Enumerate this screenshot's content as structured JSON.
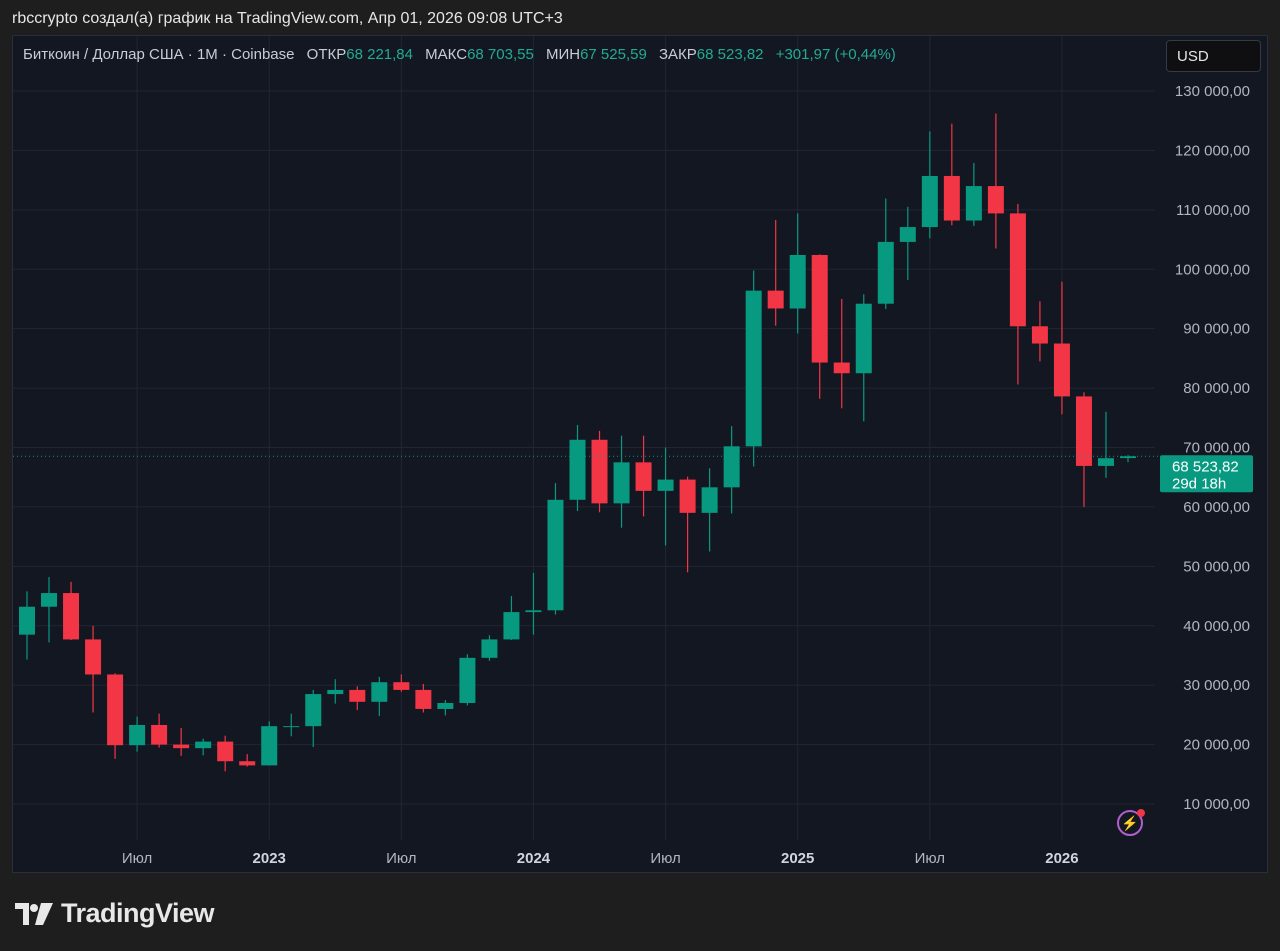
{
  "credit": "rbccrypto создал(а) график на TradingView.com, Апр 01, 2026 09:08 UTC+3",
  "legend": {
    "symbol": "Биткоин / Доллар США · 1M · Coinbase",
    "open_label": "ОТКР",
    "open": "68 221,84",
    "high_label": "МАКС",
    "high": "68 703,55",
    "low_label": "МИН",
    "low": "67 525,59",
    "close_label": "ЗАКР",
    "close": "68 523,82",
    "change": "+301,97 (+0,44%)"
  },
  "currency": "USD",
  "price_label": {
    "price": "68 523,82",
    "countdown": "29d 18h"
  },
  "logo_text": "TradingView",
  "colors": {
    "up": "#089981",
    "down": "#f23645",
    "bg": "#131722",
    "grid": "#222633"
  },
  "chart_data": {
    "type": "candlestick",
    "interval": "1M",
    "ylim": [
      0,
      135000
    ],
    "yticks": [
      10000,
      20000,
      30000,
      40000,
      50000,
      60000,
      70000,
      80000,
      90000,
      100000,
      110000,
      120000,
      130000
    ],
    "ytick_labels": [
      "10 000,00",
      "20 000,00",
      "30 000,00",
      "40 000,00",
      "50 000,00",
      "60 000,00",
      "70 000,00",
      "80 000,00",
      "90 000,00",
      "100 000,00",
      "110 000,00",
      "120 000,00",
      "130 000,00"
    ],
    "xticks": [
      {
        "index": 5,
        "label": "Июл",
        "bold": false
      },
      {
        "index": 11,
        "label": "2023",
        "bold": true
      },
      {
        "index": 17,
        "label": "Июл",
        "bold": false
      },
      {
        "index": 23,
        "label": "2024",
        "bold": true
      },
      {
        "index": 29,
        "label": "Июл",
        "bold": false
      },
      {
        "index": 35,
        "label": "2025",
        "bold": true
      },
      {
        "index": 41,
        "label": "Июл",
        "bold": false
      },
      {
        "index": 47,
        "label": "2026",
        "bold": true
      }
    ],
    "first_month": "2022-02",
    "last_price": 68523.82,
    "ohlc": [
      [
        38500,
        45800,
        34300,
        43200
      ],
      [
        43200,
        48200,
        37200,
        45500
      ],
      [
        45500,
        47400,
        37600,
        37700
      ],
      [
        37700,
        40000,
        25400,
        31800
      ],
      [
        31800,
        32000,
        17600,
        19900
      ],
      [
        19900,
        24700,
        18800,
        23300
      ],
      [
        23300,
        25200,
        19500,
        20000
      ],
      [
        20000,
        22800,
        18100,
        19400
      ],
      [
        19400,
        21000,
        18200,
        20500
      ],
      [
        20500,
        21500,
        15500,
        17200
      ],
      [
        17200,
        18400,
        16300,
        16500
      ],
      [
        16500,
        23900,
        16500,
        23100
      ],
      [
        23100,
        25200,
        21400,
        23100
      ],
      [
        23100,
        29200,
        19600,
        28500
      ],
      [
        28500,
        31000,
        26900,
        29200
      ],
      [
        29200,
        29800,
        25800,
        27200
      ],
      [
        27200,
        31400,
        24800,
        30500
      ],
      [
        30500,
        31800,
        28900,
        29200
      ],
      [
        29200,
        30200,
        25400,
        26000
      ],
      [
        26000,
        27500,
        24900,
        27000
      ],
      [
        27000,
        35200,
        26600,
        34600
      ],
      [
        34600,
        38400,
        34100,
        37700
      ],
      [
        37700,
        45000,
        37600,
        42300
      ],
      [
        42300,
        48900,
        38500,
        42600
      ],
      [
        42600,
        64000,
        41900,
        61200
      ],
      [
        61200,
        73800,
        59300,
        71300
      ],
      [
        71300,
        72800,
        59100,
        60600
      ],
      [
        60600,
        72000,
        56500,
        67500
      ],
      [
        67500,
        72000,
        58400,
        62700
      ],
      [
        62700,
        70000,
        53500,
        64600
      ],
      [
        64600,
        65100,
        49000,
        59000
      ],
      [
        59000,
        66500,
        52500,
        63300
      ],
      [
        63300,
        73600,
        58900,
        70200
      ],
      [
        70200,
        99800,
        66800,
        96400
      ],
      [
        96400,
        108300,
        90500,
        93400
      ],
      [
        93400,
        109400,
        89200,
        102400
      ],
      [
        102400,
        102500,
        78200,
        84300
      ],
      [
        84300,
        95000,
        76600,
        82500
      ],
      [
        82500,
        95800,
        74400,
        94200
      ],
      [
        94200,
        111900,
        93300,
        104600
      ],
      [
        104600,
        110500,
        98200,
        107100
      ],
      [
        107100,
        123200,
        105200,
        115700
      ],
      [
        115700,
        124500,
        107400,
        108200
      ],
      [
        108200,
        117900,
        107300,
        114000
      ],
      [
        114000,
        126200,
        103500,
        109400
      ],
      [
        109400,
        111000,
        80600,
        90400
      ],
      [
        90400,
        94600,
        84500,
        87500
      ],
      [
        87500,
        97900,
        75600,
        78600
      ],
      [
        78600,
        79300,
        60000,
        66900
      ],
      [
        66900,
        76000,
        64900,
        68200
      ],
      [
        68221.84,
        68703.55,
        67525.59,
        68523.82
      ]
    ]
  }
}
